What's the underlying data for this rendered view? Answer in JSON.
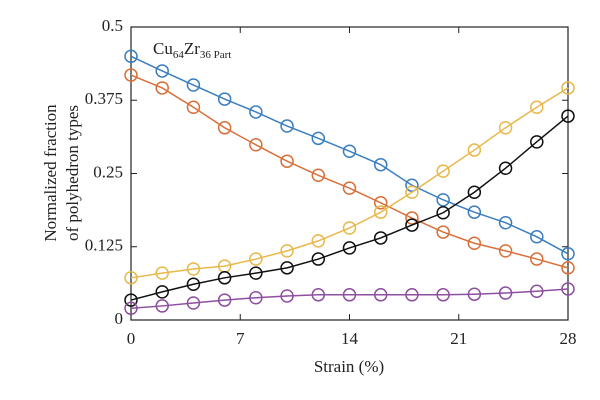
{
  "chart_data": {
    "type": "line",
    "ylabel": [
      "Normalized fraction",
      "of polyhedron types"
    ],
    "xlabel": "Strain (%)",
    "annotation": [
      {
        "text": "Cu"
      },
      {
        "text": "64",
        "sub": true
      },
      {
        "text": "Zr"
      },
      {
        "text": "36 Part",
        "sub": true
      }
    ],
    "x": [
      0,
      2,
      4,
      6,
      8,
      10,
      12,
      14,
      16,
      18,
      20,
      22,
      24,
      26,
      28
    ],
    "series": [
      {
        "color": "#3b7ebf",
        "values": [
          0.45,
          0.425,
          0.401,
          0.377,
          0.355,
          0.331,
          0.31,
          0.288,
          0.265,
          0.23,
          0.205,
          0.184,
          0.166,
          0.142,
          0.113
        ]
      },
      {
        "color": "#d9703a",
        "values": [
          0.418,
          0.396,
          0.363,
          0.328,
          0.299,
          0.271,
          0.247,
          0.225,
          0.2,
          0.174,
          0.15,
          0.131,
          0.118,
          0.104,
          0.089
        ]
      },
      {
        "color": "#e8b84a",
        "values": [
          0.072,
          0.08,
          0.087,
          0.092,
          0.104,
          0.118,
          0.135,
          0.157,
          0.184,
          0.218,
          0.254,
          0.29,
          0.328,
          0.363,
          0.396
        ]
      },
      {
        "color": "#111111",
        "values": [
          0.034,
          0.048,
          0.061,
          0.072,
          0.08,
          0.089,
          0.104,
          0.123,
          0.14,
          0.162,
          0.183,
          0.218,
          0.259,
          0.304,
          0.348
        ]
      },
      {
        "color": "#8e4fa0",
        "values": [
          0.02,
          0.024,
          0.029,
          0.034,
          0.038,
          0.041,
          0.043,
          0.043,
          0.043,
          0.043,
          0.043,
          0.044,
          0.046,
          0.049,
          0.053
        ]
      }
    ],
    "xlim": [
      0,
      28
    ],
    "xticks": [
      0,
      7,
      14,
      21,
      28
    ],
    "ylim": [
      0,
      0.5
    ],
    "yticks": [
      0,
      0.125,
      0.25,
      0.375,
      0.5
    ]
  }
}
